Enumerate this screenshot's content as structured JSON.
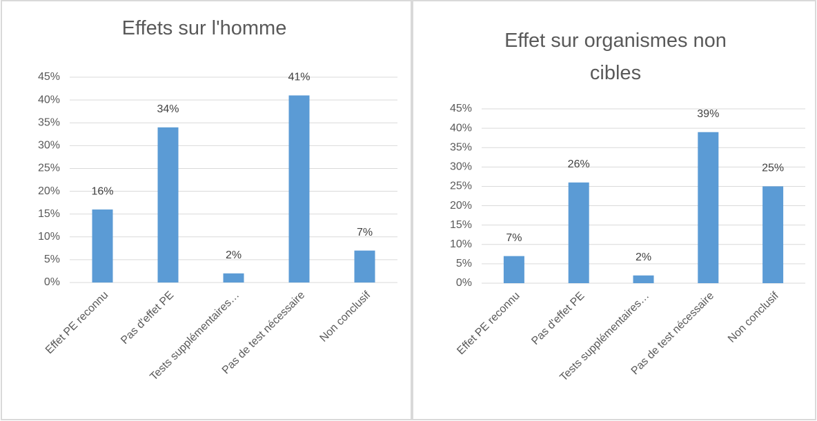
{
  "chart_data": [
    {
      "type": "bar",
      "title": "Effets sur l'homme",
      "categories": [
        "Effet PE reconnu",
        "Pas d'effet PE",
        "Tests supplémentaires…",
        "Pas de test nécessaire",
        "Non conclusif"
      ],
      "values": [
        16,
        34,
        2,
        41,
        7
      ],
      "value_labels": [
        "16%",
        "34%",
        "2%",
        "41%",
        "7%"
      ],
      "color": "#5b9bd5",
      "ylim": [
        0,
        45
      ],
      "yticks": [
        {
          "value": 0,
          "label": "0%"
        },
        {
          "value": 5,
          "label": "5%"
        },
        {
          "value": 10,
          "label": "10%"
        },
        {
          "value": 15,
          "label": "15%"
        },
        {
          "value": 20,
          "label": "20%"
        },
        {
          "value": 25,
          "label": "25%"
        },
        {
          "value": 30,
          "label": "30%"
        },
        {
          "value": 35,
          "label": "35%"
        },
        {
          "value": 40,
          "label": "40%"
        },
        {
          "value": 45,
          "label": "45%"
        }
      ],
      "grid": true
    },
    {
      "type": "bar",
      "title": "Effet sur organismes non cibles",
      "categories": [
        "Effet PE reconnu",
        "Pas d'effet PE",
        "Tests supplémentaires…",
        "Pas de test nécessaire",
        "Non conclusif"
      ],
      "values": [
        7,
        26,
        2,
        39,
        25
      ],
      "value_labels": [
        "7%",
        "26%",
        "2%",
        "39%",
        "25%"
      ],
      "color": "#5b9bd5",
      "ylim": [
        0,
        45
      ],
      "yticks": [
        {
          "value": 0,
          "label": "0%"
        },
        {
          "value": 5,
          "label": "5%"
        },
        {
          "value": 10,
          "label": "10%"
        },
        {
          "value": 15,
          "label": "15%"
        },
        {
          "value": 20,
          "label": "20%"
        },
        {
          "value": 25,
          "label": "25%"
        },
        {
          "value": 30,
          "label": "30%"
        },
        {
          "value": 35,
          "label": "35%"
        },
        {
          "value": 40,
          "label": "40%"
        },
        {
          "value": 45,
          "label": "45%"
        }
      ],
      "grid": true
    }
  ]
}
